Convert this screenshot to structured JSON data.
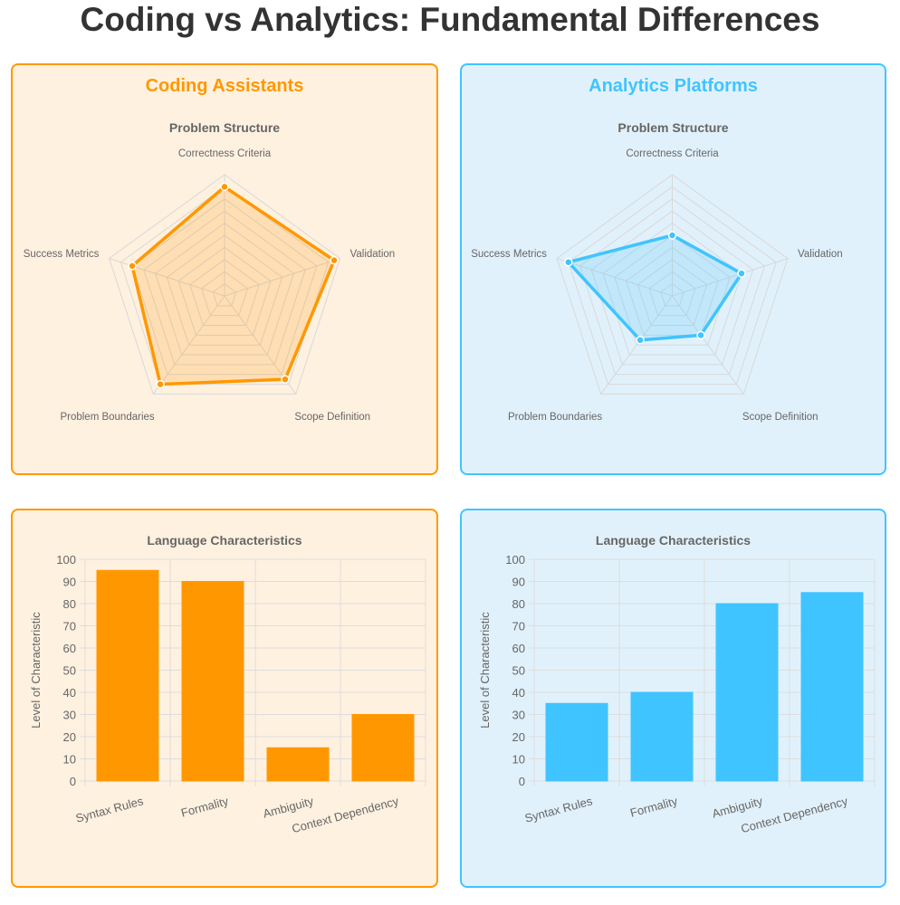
{
  "title": "Coding vs Analytics: Fundamental Differences",
  "colors": {
    "coding": "#ff9800",
    "coding_bg": "#fff1e0",
    "analytics": "#40c4ff",
    "analytics_bg": "#e1f1fb"
  },
  "panels": [
    {
      "title": "Coding Assistants",
      "theme": "coding"
    },
    {
      "title": "Analytics Platforms",
      "theme": "analytics"
    }
  ],
  "chart_data": [
    {
      "type": "radar",
      "title": "Problem Structure",
      "panel": "Coding Assistants",
      "axes": [
        "Correctness Criteria",
        "Validation",
        "Scope Definition",
        "Problem Boundaries",
        "Success Metrics"
      ],
      "values": [
        90,
        95,
        85,
        90,
        80
      ],
      "range": [
        0,
        100
      ],
      "grid_step": 10
    },
    {
      "type": "radar",
      "title": "Problem Structure",
      "panel": "Analytics Platforms",
      "axes": [
        "Correctness Criteria",
        "Validation",
        "Scope Definition",
        "Problem Boundaries",
        "Success Metrics"
      ],
      "values": [
        50,
        60,
        40,
        45,
        90
      ],
      "range": [
        0,
        100
      ],
      "grid_step": 10
    },
    {
      "type": "bar",
      "title": "Language Characteristics",
      "panel": "Coding Assistants",
      "categories": [
        "Syntax Rules",
        "Formality",
        "Ambiguity",
        "Context Dependency"
      ],
      "values": [
        95,
        90,
        15,
        30
      ],
      "ylabel": "Level of Characteristic",
      "xlabel": "",
      "ylim": [
        0,
        100
      ],
      "yticks": [
        0,
        10,
        20,
        30,
        40,
        50,
        60,
        70,
        80,
        90,
        100
      ],
      "grid": true
    },
    {
      "type": "bar",
      "title": "Language Characteristics",
      "panel": "Analytics Platforms",
      "categories": [
        "Syntax Rules",
        "Formality",
        "Ambiguity",
        "Context Dependency"
      ],
      "values": [
        35,
        40,
        80,
        85
      ],
      "ylabel": "Level of Characteristic",
      "xlabel": "",
      "ylim": [
        0,
        100
      ],
      "yticks": [
        0,
        10,
        20,
        30,
        40,
        50,
        60,
        70,
        80,
        90,
        100
      ],
      "grid": true
    }
  ]
}
